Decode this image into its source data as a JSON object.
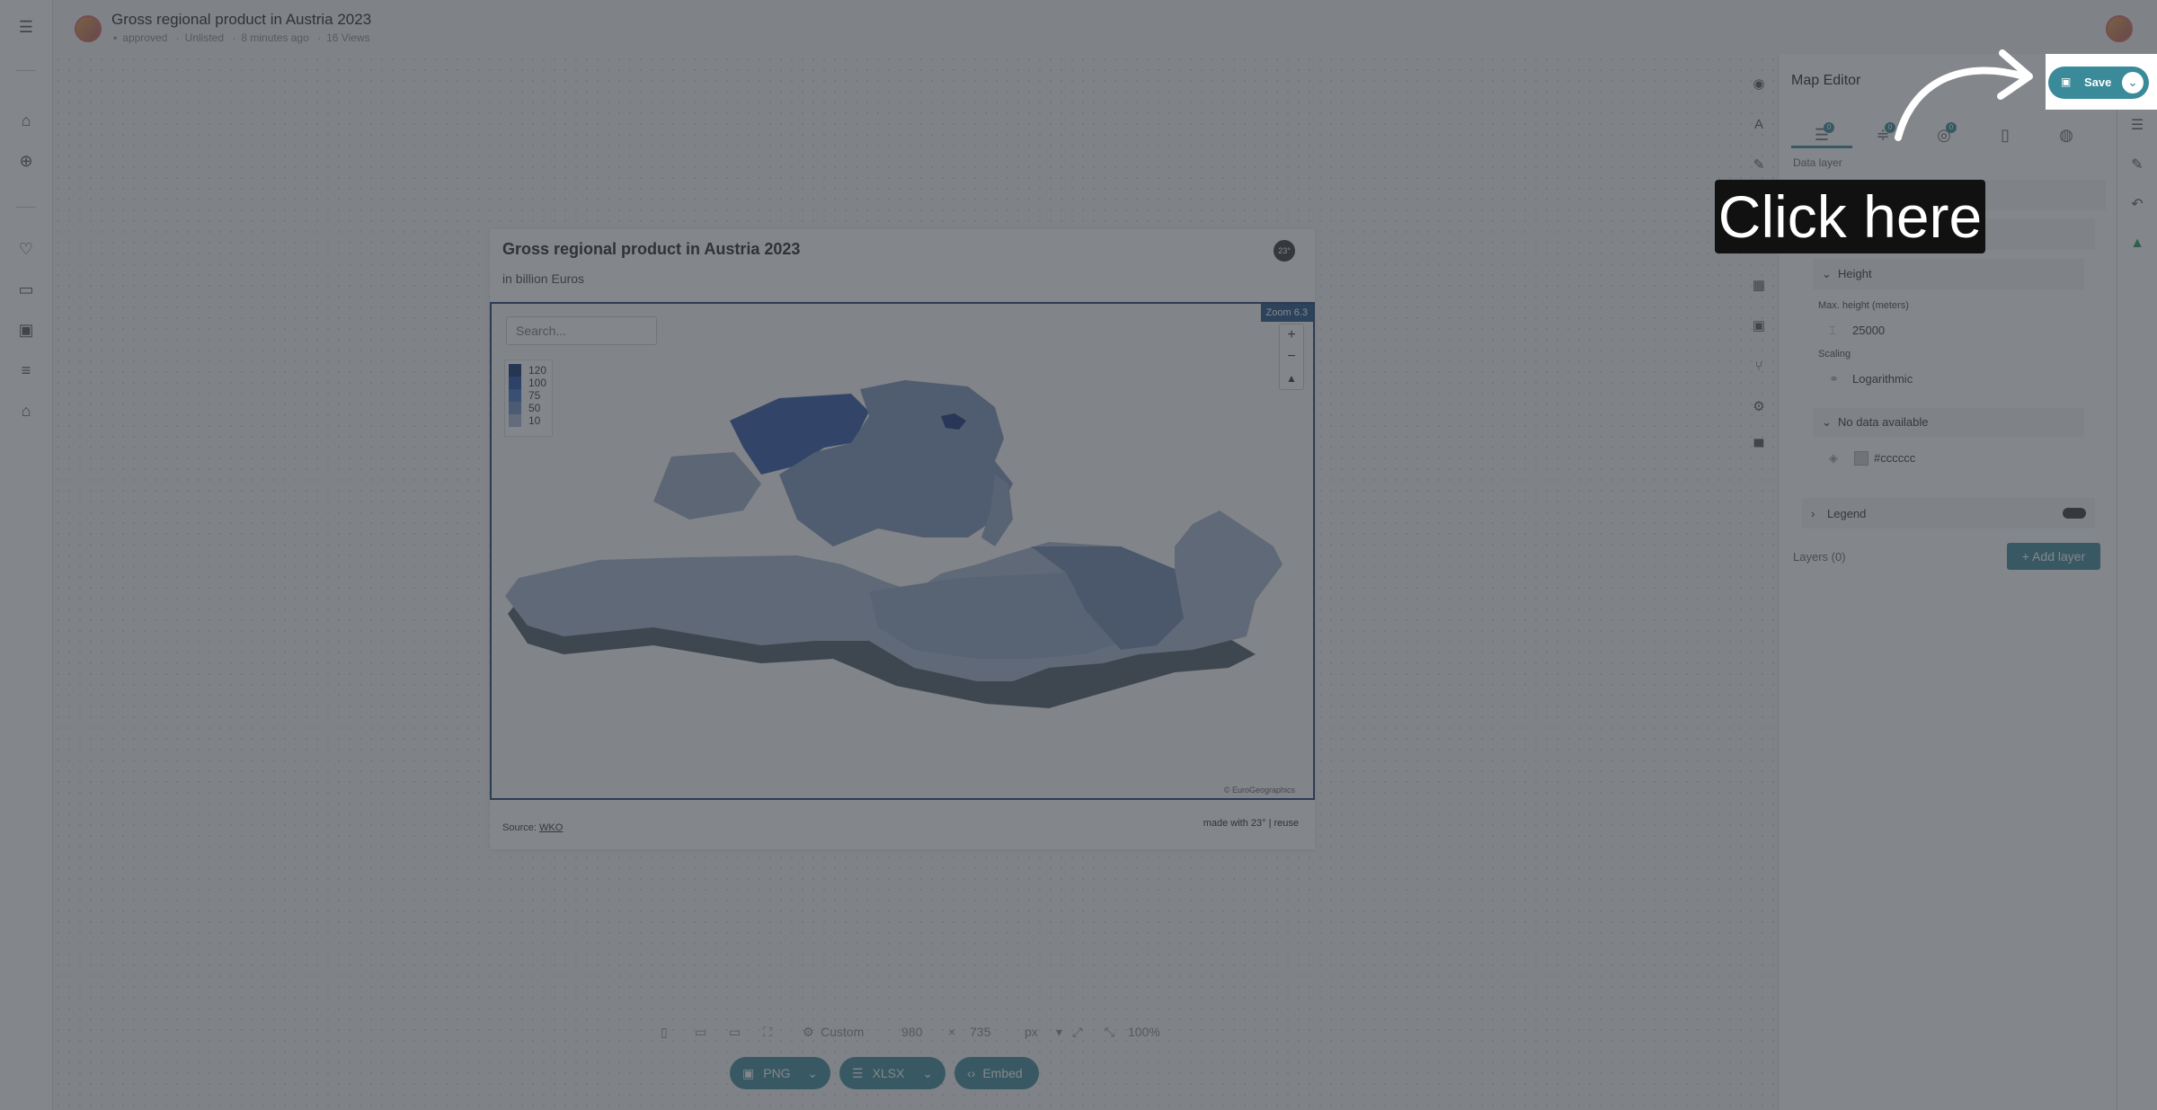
{
  "header": {
    "title": "Gross regional product in Austria 2023",
    "status": "approved",
    "visibility": "Unlisted",
    "edited": "8 minutes ago",
    "views": "16 Views"
  },
  "chart": {
    "title": "Gross regional product in Austria 2023",
    "subtitle": "in billion Euros",
    "logo_text": "23°",
    "search_placeholder": "Search...",
    "zoom_label": "Zoom 6.3",
    "legend": [
      {
        "label": "120",
        "color": "#0d2a6b"
      },
      {
        "label": "100",
        "color": "#1f4aa8"
      },
      {
        "label": "75",
        "color": "#3d6fc4"
      },
      {
        "label": "50",
        "color": "#6f8fc2"
      },
      {
        "label": "10",
        "color": "#a9bcd9"
      }
    ],
    "attribution": "© EuroGeographics",
    "source_label": "Source:",
    "source_link": "WKO",
    "made_with": "made with 23° | reuse"
  },
  "bottombar": {
    "preset": "Custom",
    "width": "980",
    "height": "735",
    "times": "×",
    "unit": "px",
    "zoom": "100%",
    "png_label": "PNG",
    "xlsx_label": "XLSX",
    "embed_label": "Embed"
  },
  "panel": {
    "title": "Map Editor",
    "tab_badges": [
      "0",
      "0",
      "0"
    ],
    "data_layer_label": "Data layer",
    "height_section": "Height",
    "max_height_label": "Max. height (meters)",
    "max_height_value": "25000",
    "scaling_label": "Scaling",
    "scaling_value": "Logarithmic",
    "no_data_section": "No data available",
    "no_data_color": "#cccccc",
    "legend_section": "Legend",
    "layers_label": "Layers (0)",
    "add_layer": "+ Add layer"
  },
  "save": {
    "label": "Save"
  },
  "callout": {
    "text": "Click here"
  },
  "colors": {
    "accent": "#3a8a9a",
    "map_border": "#1b3d6e"
  }
}
